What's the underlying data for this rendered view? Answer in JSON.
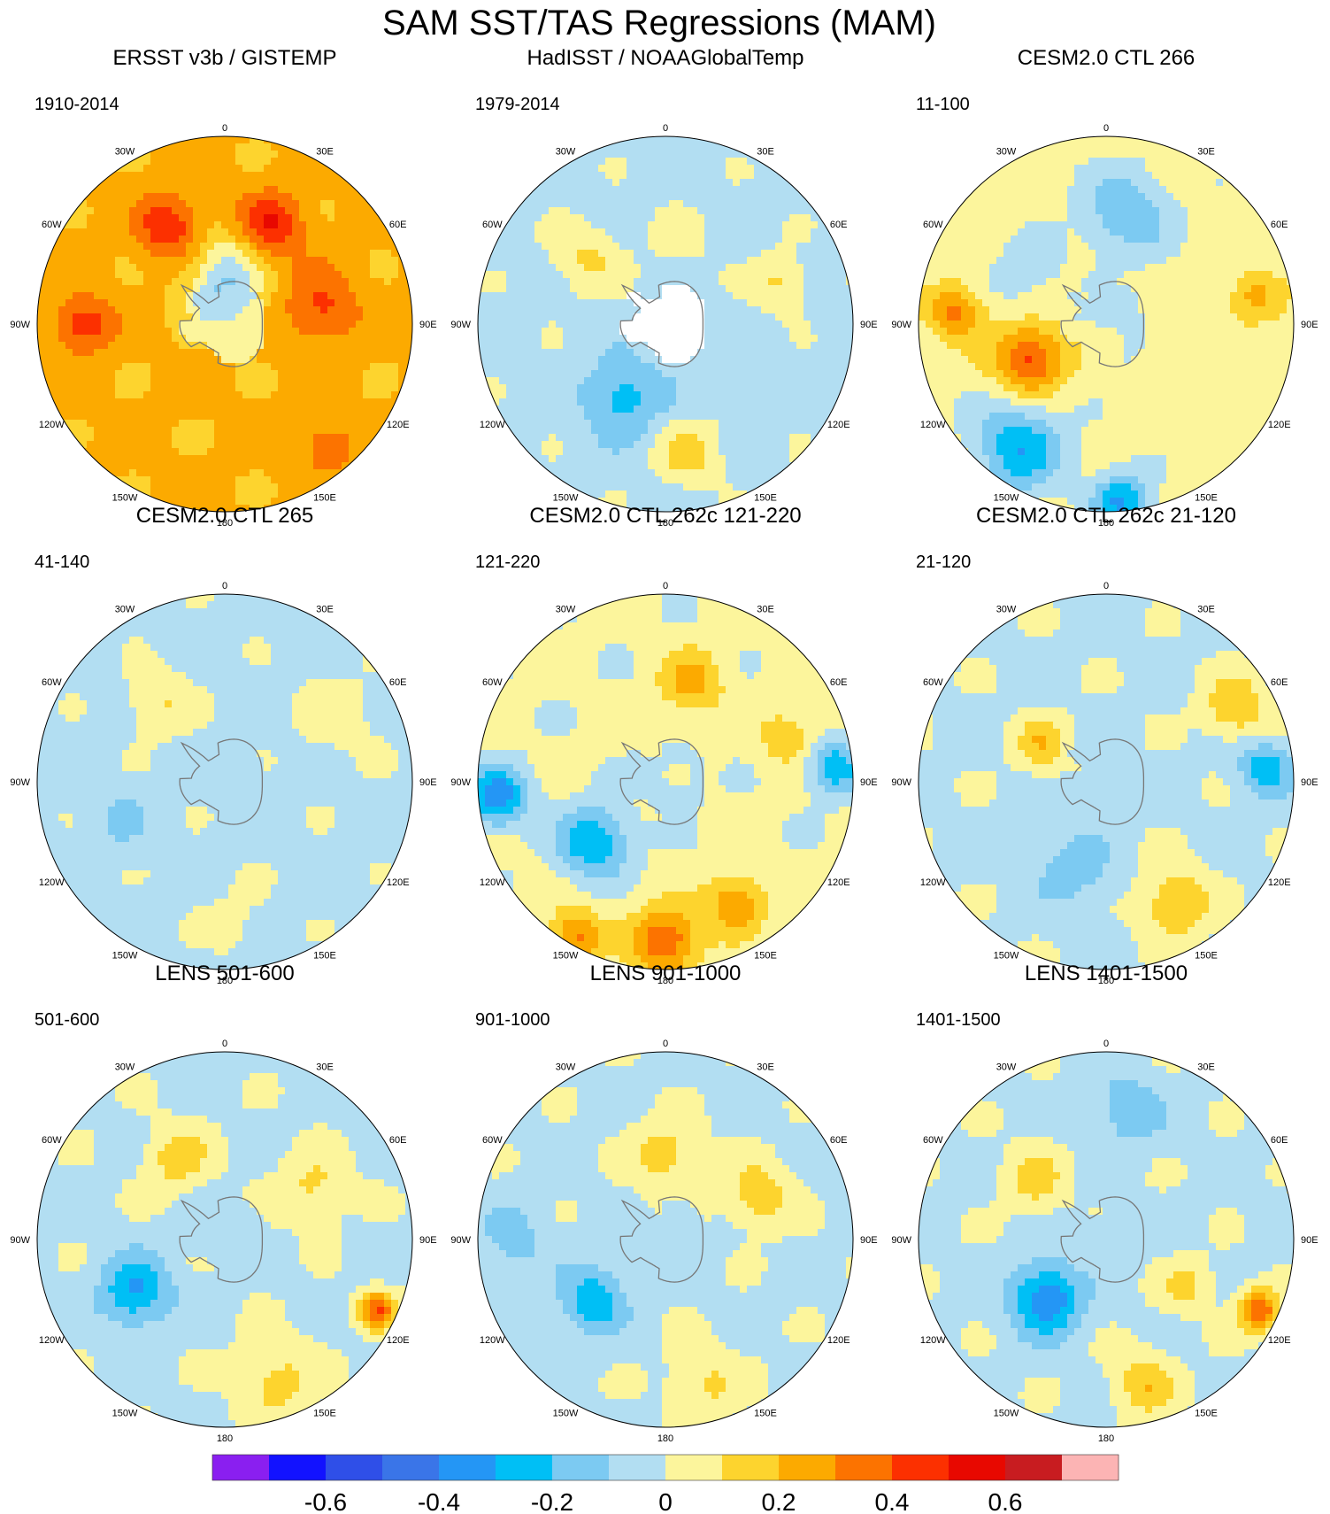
{
  "chart_data": {
    "type": "polar-map-panels",
    "title": "SAM SST/TAS Regressions (MAM)",
    "projection": "south polar stereographic",
    "lon_labels": [
      "0",
      "30E",
      "60E",
      "90E",
      "120E",
      "150E",
      "180",
      "150W",
      "120W",
      "90W",
      "60W",
      "30W"
    ],
    "colorbar": {
      "levels": [
        -0.7,
        -0.6,
        -0.5,
        -0.4,
        -0.3,
        -0.2,
        -0.1,
        0,
        0.1,
        0.2,
        0.3,
        0.4,
        0.5,
        0.6,
        0.7
      ],
      "colors": [
        "#8a1ff0",
        "#1212ff",
        "#2f4fe8",
        "#3a75e8",
        "#2496f5",
        "#00bff5",
        "#7ccaf2",
        "#b2def2",
        "#fcf59c",
        "#fdd42e",
        "#fcaa00",
        "#fc7300",
        "#fc3000",
        "#e80800",
        "#c81c20",
        "#fcb4b4"
      ],
      "tick_labels": [
        "-0.6",
        "-0.4",
        "-0.2",
        "0",
        "0.2",
        "0.4",
        "0.6"
      ]
    },
    "panels": [
      {
        "title": "ERSST v3b / GISTEMP",
        "period": "1910-2014",
        "base": 0.22,
        "missing_antarctica": false,
        "anomalies": [
          [
            80,
            0.52,
            0.21,
            0.14
          ],
          [
            25,
            0.58,
            0.28,
            0.12
          ],
          [
            270,
            0.75,
            0.25,
            0.11
          ],
          [
            330,
            0.6,
            0.26,
            0.12
          ],
          [
            140,
            0.85,
            0.16,
            0.1
          ],
          [
            0,
            0.18,
            -0.33,
            0.14
          ],
          [
            0,
            0.4,
            -0.1,
            0.1
          ]
        ]
      },
      {
        "title": "HadISST / NOAAGlobalTemp",
        "period": "1979-2014",
        "base": -0.03,
        "missing_antarctica": true,
        "anomalies": [
          [
            210,
            0.45,
            -0.22,
            0.15
          ],
          [
            170,
            0.7,
            0.17,
            0.12
          ],
          [
            310,
            0.55,
            0.15,
            0.12
          ],
          [
            70,
            0.65,
            0.15,
            0.1
          ],
          [
            10,
            0.45,
            0.05,
            0.14
          ],
          [
            115,
            0.5,
            -0.05,
            0.12
          ]
        ]
      },
      {
        "title": "CESM2.0 CTL 266",
        "period": "11-100",
        "base": 0.04,
        "missing_antarctica": false,
        "anomalies": [
          [
            245,
            0.45,
            0.4,
            0.13
          ],
          [
            215,
            0.8,
            -0.32,
            0.17
          ],
          [
            175,
            0.95,
            -0.35,
            0.11
          ],
          [
            10,
            0.6,
            -0.22,
            0.17
          ],
          [
            80,
            0.8,
            0.18,
            0.1
          ],
          [
            275,
            0.8,
            0.3,
            0.1
          ],
          [
            300,
            0.5,
            -0.1,
            0.14
          ]
        ]
      },
      {
        "title": "CESM2.0 CTL 265",
        "period": "41-140",
        "base": -0.03,
        "missing_antarctica": false,
        "anomalies": [
          [
            320,
            0.55,
            0.14,
            0.12
          ],
          [
            60,
            0.7,
            0.08,
            0.16
          ],
          [
            175,
            0.75,
            0.06,
            0.14
          ],
          [
            250,
            0.6,
            -0.08,
            0.12
          ]
        ]
      },
      {
        "title": "CESM2.0 CTL 262c 121-220",
        "period": "121-220",
        "base": 0.02,
        "missing_antarctica": false,
        "anomalies": [
          [
            230,
            0.5,
            -0.33,
            0.13
          ],
          [
            265,
            0.9,
            -0.4,
            0.11
          ],
          [
            180,
            0.85,
            0.38,
            0.13
          ],
          [
            150,
            0.75,
            0.28,
            0.11
          ],
          [
            210,
            0.95,
            0.3,
            0.1
          ],
          [
            15,
            0.55,
            0.22,
            0.12
          ],
          [
            70,
            0.7,
            0.16,
            0.11
          ],
          [
            85,
            0.9,
            -0.3,
            0.1
          ]
        ]
      },
      {
        "title": "CESM2.0 CTL 262c 21-120",
        "period": "21-120",
        "base": -0.02,
        "missing_antarctica": false,
        "anomalies": [
          [
            60,
            0.8,
            0.22,
            0.12
          ],
          [
            150,
            0.75,
            0.24,
            0.13
          ],
          [
            300,
            0.4,
            0.2,
            0.1
          ],
          [
            85,
            0.85,
            -0.25,
            0.1
          ],
          [
            200,
            0.5,
            -0.14,
            0.14
          ]
        ]
      },
      {
        "title": "LENS 501-600",
        "period": "501-600",
        "base": -0.02,
        "missing_antarctica": false,
        "anomalies": [
          [
            240,
            0.55,
            -0.3,
            0.13
          ],
          [
            330,
            0.5,
            0.18,
            0.12
          ],
          [
            60,
            0.55,
            0.15,
            0.13
          ],
          [
            160,
            0.8,
            0.16,
            0.15
          ],
          [
            115,
            0.9,
            0.4,
            0.07
          ]
        ]
      },
      {
        "title": "LENS 901-1000",
        "period": "901-1000",
        "base": -0.02,
        "missing_antarctica": false,
        "anomalies": [
          [
            230,
            0.5,
            -0.26,
            0.12
          ],
          [
            0,
            0.45,
            0.18,
            0.13
          ],
          [
            65,
            0.55,
            0.2,
            0.12
          ],
          [
            165,
            0.8,
            0.14,
            0.14
          ],
          [
            270,
            0.8,
            -0.12,
            0.13
          ]
        ]
      },
      {
        "title": "LENS 1401-1500",
        "period": "1401-1500",
        "base": -0.02,
        "missing_antarctica": false,
        "anomalies": [
          [
            225,
            0.45,
            -0.38,
            0.13
          ],
          [
            310,
            0.5,
            0.16,
            0.12
          ],
          [
            120,
            0.5,
            0.14,
            0.1
          ],
          [
            165,
            0.8,
            0.2,
            0.12
          ],
          [
            115,
            0.9,
            0.4,
            0.08
          ],
          [
            10,
            0.7,
            -0.16,
            0.13
          ]
        ]
      }
    ]
  }
}
